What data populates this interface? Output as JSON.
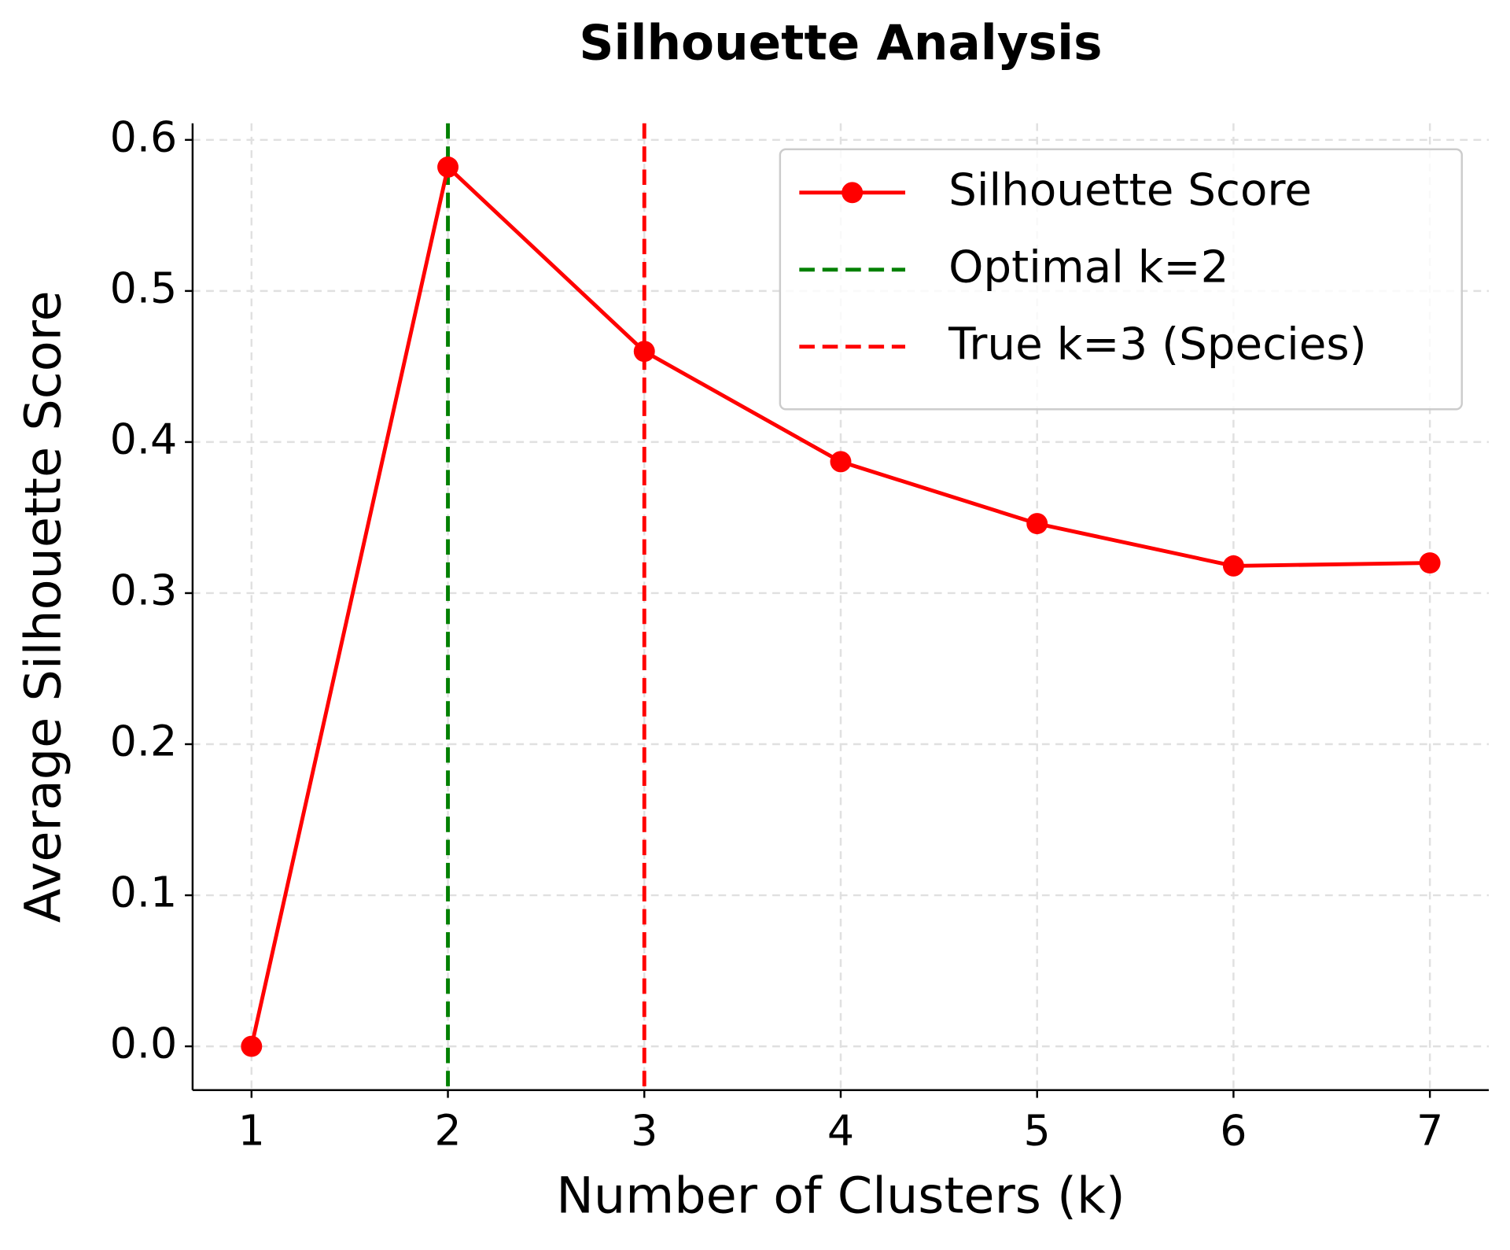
{
  "chart_data": {
    "type": "line",
    "title": "Silhouette Analysis",
    "xlabel": "Number of Clusters (k)",
    "ylabel": "Average Silhouette Score",
    "x": [
      1,
      2,
      3,
      4,
      5,
      6,
      7
    ],
    "series": [
      {
        "name": "Silhouette Score",
        "color": "#ff0000",
        "values": [
          0.0,
          0.582,
          0.46,
          0.387,
          0.346,
          0.318,
          0.32
        ]
      }
    ],
    "vlines": [
      {
        "x": 2,
        "name": "Optimal k=2",
        "color": "#008000"
      },
      {
        "x": 3,
        "name": "True k=3 (Species)",
        "color": "#ff0000"
      }
    ],
    "xlim": [
      0.7,
      7.3
    ],
    "ylim": [
      -0.029,
      0.611
    ],
    "xticks": [
      1,
      2,
      3,
      4,
      5,
      6,
      7
    ],
    "yticks": [
      {
        "value": 0,
        "label": "0.0"
      },
      {
        "value": 0.1,
        "label": "0.1"
      },
      {
        "value": 0.2,
        "label": "0.2"
      },
      {
        "value": 0.3,
        "label": "0.3"
      },
      {
        "value": 0.4,
        "label": "0.4"
      },
      {
        "value": 0.5,
        "label": "0.5"
      },
      {
        "value": 0.6,
        "label": "0.6"
      }
    ],
    "grid": true,
    "legend": "upper right"
  }
}
